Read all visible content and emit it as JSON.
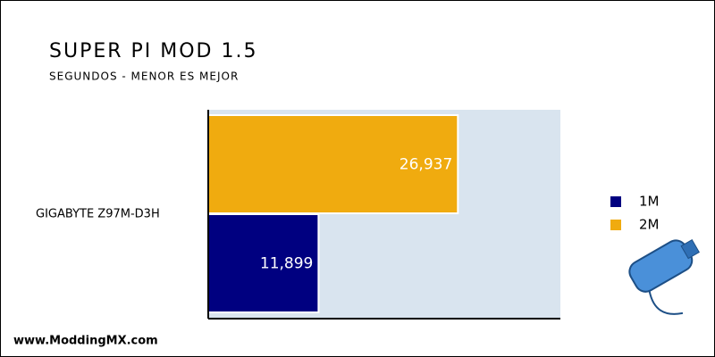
{
  "chart_data": {
    "type": "hbar",
    "title": "SUPER PI MOD 1.5",
    "subtitle": "SEGUNDOS - MENOR ES MEJOR",
    "categories": [
      "GIGABYTE Z97M-D3H"
    ],
    "series": [
      {
        "name": "1M",
        "color": "#000080",
        "values": [
          11.899
        ],
        "value_labels": [
          "11,899"
        ]
      },
      {
        "name": "2M",
        "color": "#f0ab0f",
        "values": [
          26.937
        ],
        "value_labels": [
          "26,937"
        ]
      }
    ],
    "xlim": [
      0,
      38
    ],
    "legend": "right",
    "watermark": "www.ModdingMX.com"
  }
}
